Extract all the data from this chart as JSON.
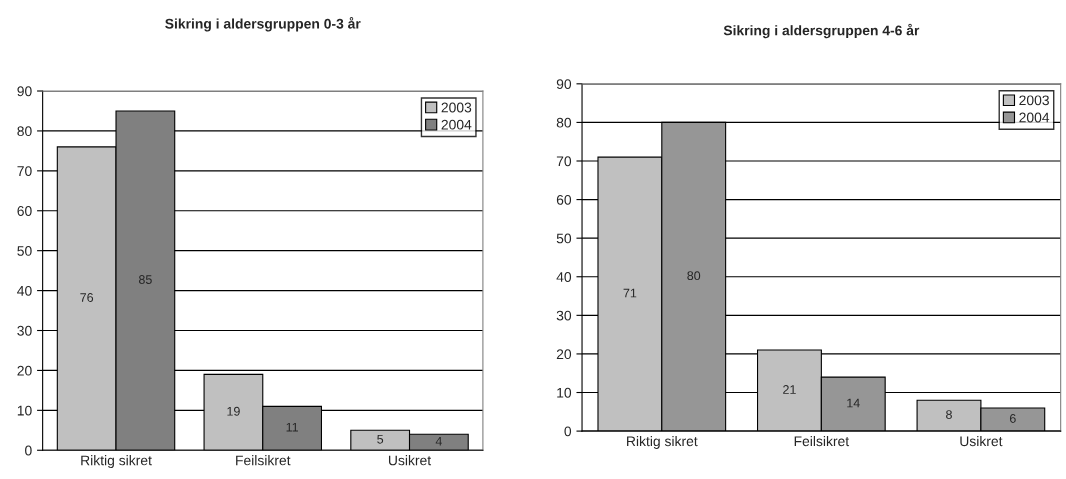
{
  "chart_data": [
    {
      "type": "bar",
      "title": "Sikring i aldersgruppen 0-3 år",
      "categories": [
        "Riktig sikret",
        "Feilsikret",
        "Usikret"
      ],
      "series": [
        {
          "name": "2003",
          "color": "#c0c0c0",
          "values": [
            76,
            19,
            5
          ]
        },
        {
          "name": "2004",
          "color": "#808080",
          "values": [
            85,
            11,
            4
          ]
        }
      ],
      "ylim": [
        0,
        90
      ],
      "yticks": [
        0,
        10,
        20,
        30,
        40,
        50,
        60,
        70,
        80,
        90
      ],
      "grid": "y",
      "legend": "top right",
      "data_labels": true
    },
    {
      "type": "bar",
      "title": "Sikring i aldersgruppen 4-6 år",
      "categories": [
        "Riktig sikret",
        "Feilsikret",
        "Usikret"
      ],
      "series": [
        {
          "name": "2003",
          "color": "#c0c0c0",
          "values": [
            71,
            21,
            8
          ]
        },
        {
          "name": "2004",
          "color": "#969696",
          "values": [
            80,
            14,
            6
          ]
        }
      ],
      "ylim": [
        0,
        90
      ],
      "yticks": [
        0,
        10,
        20,
        30,
        40,
        50,
        60,
        70,
        80,
        90
      ],
      "grid": "y",
      "legend": "top right",
      "data_labels": true
    }
  ]
}
